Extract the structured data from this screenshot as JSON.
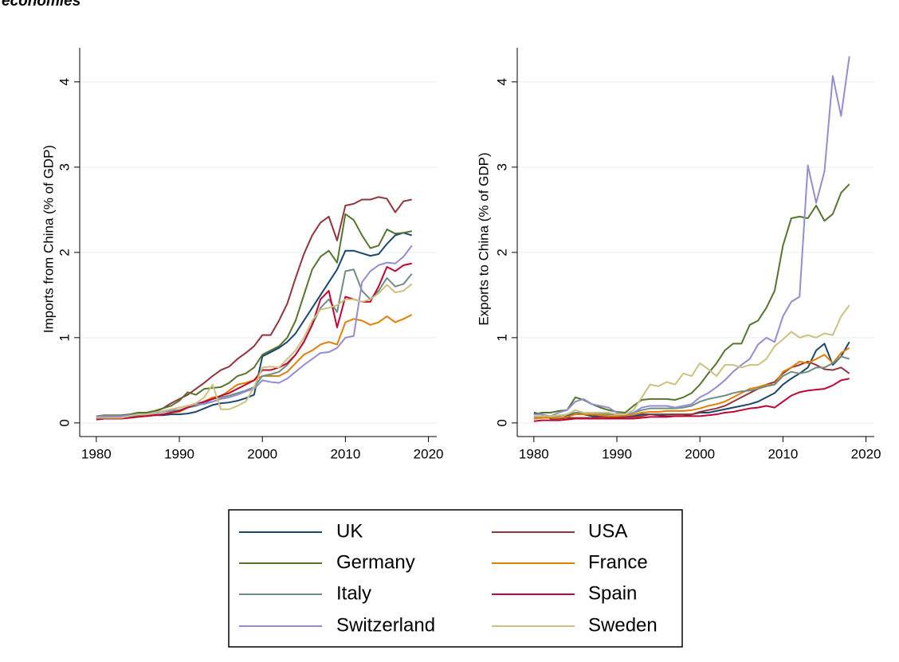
{
  "header": {
    "title": "economies"
  },
  "chart_data": [
    {
      "type": "line",
      "ylabel": "Imports from China (% of GDP)",
      "x": [
        1980,
        1981,
        1982,
        1983,
        1984,
        1985,
        1986,
        1987,
        1988,
        1989,
        1990,
        1991,
        1992,
        1993,
        1994,
        1995,
        1996,
        1997,
        1998,
        1999,
        2000,
        2001,
        2002,
        2003,
        2004,
        2005,
        2006,
        2007,
        2008,
        2009,
        2010,
        2011,
        2012,
        2013,
        2014,
        2015,
        2016,
        2017,
        2018
      ],
      "xlim": [
        1978,
        2021
      ],
      "xticks": [
        1980,
        1990,
        2000,
        2010,
        2020
      ],
      "ylim": [
        -0.16,
        4.4
      ],
      "yticks": [
        0,
        1,
        2,
        3,
        4
      ],
      "grid": true,
      "series": [
        {
          "name": "UK",
          "color": "#1a476f",
          "values": [
            0.07,
            0.07,
            0.07,
            0.07,
            0.08,
            0.08,
            0.08,
            0.09,
            0.09,
            0.1,
            0.1,
            0.11,
            0.13,
            0.17,
            0.21,
            0.23,
            0.24,
            0.26,
            0.29,
            0.33,
            0.78,
            0.83,
            0.88,
            0.95,
            1.05,
            1.2,
            1.35,
            1.5,
            1.65,
            1.8,
            2.02,
            2.02,
            1.99,
            1.96,
            1.98,
            2.1,
            2.2,
            2.23,
            2.2
          ]
        },
        {
          "name": "USA",
          "color": "#90353b",
          "values": [
            0.05,
            0.05,
            0.05,
            0.05,
            0.07,
            0.09,
            0.1,
            0.13,
            0.17,
            0.23,
            0.28,
            0.33,
            0.4,
            0.47,
            0.55,
            0.62,
            0.66,
            0.75,
            0.82,
            0.9,
            1.03,
            1.03,
            1.2,
            1.4,
            1.7,
            1.98,
            2.2,
            2.35,
            2.42,
            2.14,
            2.55,
            2.57,
            2.62,
            2.62,
            2.65,
            2.63,
            2.47,
            2.6,
            2.62
          ]
        },
        {
          "name": "Germany",
          "color": "#55752f",
          "values": [
            0.08,
            0.09,
            0.09,
            0.09,
            0.1,
            0.12,
            0.12,
            0.14,
            0.17,
            0.2,
            0.26,
            0.36,
            0.33,
            0.4,
            0.41,
            0.42,
            0.47,
            0.55,
            0.58,
            0.65,
            0.8,
            0.85,
            0.9,
            1.0,
            1.2,
            1.5,
            1.8,
            1.95,
            2.02,
            1.88,
            2.45,
            2.38,
            2.2,
            2.05,
            2.08,
            2.27,
            2.22,
            2.23,
            2.25
          ]
        },
        {
          "name": "France",
          "color": "#e37e00",
          "values": [
            0.06,
            0.06,
            0.06,
            0.06,
            0.07,
            0.08,
            0.08,
            0.09,
            0.1,
            0.12,
            0.13,
            0.18,
            0.2,
            0.25,
            0.3,
            0.31,
            0.38,
            0.45,
            0.47,
            0.5,
            0.55,
            0.55,
            0.55,
            0.6,
            0.7,
            0.8,
            0.85,
            0.92,
            0.95,
            0.92,
            1.18,
            1.22,
            1.2,
            1.15,
            1.18,
            1.25,
            1.18,
            1.22,
            1.27
          ]
        },
        {
          "name": "Italy",
          "color": "#6e8e84",
          "values": [
            0.06,
            0.06,
            0.06,
            0.06,
            0.07,
            0.09,
            0.1,
            0.12,
            0.13,
            0.14,
            0.15,
            0.18,
            0.2,
            0.23,
            0.28,
            0.3,
            0.32,
            0.35,
            0.38,
            0.42,
            0.55,
            0.57,
            0.6,
            0.68,
            0.8,
            0.95,
            1.15,
            1.35,
            1.45,
            1.3,
            1.78,
            1.8,
            1.55,
            1.45,
            1.55,
            1.7,
            1.6,
            1.63,
            1.75
          ]
        },
        {
          "name": "Spain",
          "color": "#c10534",
          "values": [
            0.04,
            0.05,
            0.05,
            0.05,
            0.06,
            0.07,
            0.08,
            0.09,
            0.1,
            0.12,
            0.14,
            0.18,
            0.22,
            0.25,
            0.28,
            0.32,
            0.35,
            0.4,
            0.45,
            0.5,
            0.62,
            0.62,
            0.65,
            0.7,
            0.8,
            0.95,
            1.15,
            1.45,
            1.55,
            1.12,
            1.48,
            1.45,
            1.42,
            1.42,
            1.6,
            1.83,
            1.78,
            1.85,
            1.87
          ]
        },
        {
          "name": "Switzerland",
          "color": "#938dd2",
          "values": [
            0.08,
            0.08,
            0.08,
            0.08,
            0.09,
            0.1,
            0.1,
            0.11,
            0.13,
            0.15,
            0.18,
            0.2,
            0.22,
            0.22,
            0.25,
            0.28,
            0.3,
            0.33,
            0.37,
            0.4,
            0.5,
            0.48,
            0.47,
            0.52,
            0.6,
            0.68,
            0.75,
            0.82,
            0.83,
            0.88,
            1.0,
            1.02,
            1.65,
            1.78,
            1.85,
            1.88,
            1.87,
            1.95,
            2.08
          ]
        },
        {
          "name": "Sweden",
          "color": "#cac27e",
          "values": [
            0.06,
            0.06,
            0.06,
            0.06,
            0.08,
            0.1,
            0.1,
            0.12,
            0.14,
            0.16,
            0.18,
            0.2,
            0.23,
            0.3,
            0.45,
            0.16,
            0.16,
            0.2,
            0.25,
            0.42,
            0.65,
            0.66,
            0.65,
            0.75,
            0.85,
            1.0,
            1.2,
            1.33,
            1.35,
            1.38,
            1.45,
            1.45,
            1.42,
            1.45,
            1.52,
            1.62,
            1.53,
            1.55,
            1.63
          ]
        }
      ]
    },
    {
      "type": "line",
      "ylabel": "Exports to China (% of GDP)",
      "x": [
        1980,
        1981,
        1982,
        1983,
        1984,
        1985,
        1986,
        1987,
        1988,
        1989,
        1990,
        1991,
        1992,
        1993,
        1994,
        1995,
        1996,
        1997,
        1998,
        1999,
        2000,
        2001,
        2002,
        2003,
        2004,
        2005,
        2006,
        2007,
        2008,
        2009,
        2010,
        2011,
        2012,
        2013,
        2014,
        2015,
        2016,
        2017,
        2018
      ],
      "xlim": [
        1978,
        2021
      ],
      "xticks": [
        1980,
        1990,
        2000,
        2010,
        2020
      ],
      "ylim": [
        -0.16,
        4.4
      ],
      "yticks": [
        0,
        1,
        2,
        3,
        4
      ],
      "grid": true,
      "series": [
        {
          "color": "#1a476f",
          "values": [
            0.12,
            0.1,
            0.05,
            0.05,
            0.08,
            0.12,
            0.1,
            0.08,
            0.08,
            0.07,
            0.07,
            0.07,
            0.08,
            0.1,
            0.1,
            0.09,
            0.08,
            0.08,
            0.08,
            0.1,
            0.12,
            0.12,
            0.14,
            0.16,
            0.18,
            0.2,
            0.22,
            0.25,
            0.3,
            0.35,
            0.45,
            0.52,
            0.58,
            0.65,
            0.85,
            0.93,
            0.68,
            0.78,
            0.95
          ]
        },
        {
          "color": "#90353b",
          "values": [
            0.05,
            0.06,
            0.06,
            0.05,
            0.06,
            0.06,
            0.06,
            0.06,
            0.07,
            0.07,
            0.06,
            0.07,
            0.07,
            0.08,
            0.1,
            0.1,
            0.1,
            0.1,
            0.1,
            0.1,
            0.13,
            0.15,
            0.17,
            0.2,
            0.25,
            0.3,
            0.35,
            0.4,
            0.45,
            0.48,
            0.58,
            0.65,
            0.68,
            0.72,
            0.68,
            0.63,
            0.62,
            0.65,
            0.58
          ]
        },
        {
          "color": "#55752f",
          "values": [
            0.1,
            0.12,
            0.12,
            0.14,
            0.15,
            0.3,
            0.27,
            0.22,
            0.18,
            0.15,
            0.13,
            0.12,
            0.2,
            0.27,
            0.28,
            0.28,
            0.28,
            0.27,
            0.3,
            0.35,
            0.45,
            0.58,
            0.7,
            0.85,
            0.93,
            0.93,
            1.15,
            1.2,
            1.35,
            1.55,
            2.08,
            2.4,
            2.42,
            2.4,
            2.55,
            2.37,
            2.45,
            2.7,
            2.8
          ]
        },
        {
          "color": "#e37e00",
          "values": [
            0.05,
            0.06,
            0.06,
            0.06,
            0.07,
            0.1,
            0.1,
            0.1,
            0.09,
            0.08,
            0.08,
            0.09,
            0.1,
            0.12,
            0.13,
            0.13,
            0.14,
            0.14,
            0.14,
            0.15,
            0.17,
            0.2,
            0.22,
            0.25,
            0.3,
            0.35,
            0.4,
            0.42,
            0.45,
            0.45,
            0.6,
            0.65,
            0.72,
            0.7,
            0.75,
            0.8,
            0.7,
            0.82,
            0.88
          ]
        },
        {
          "color": "#6e8e84",
          "values": [
            0.07,
            0.08,
            0.08,
            0.08,
            0.1,
            0.12,
            0.12,
            0.12,
            0.11,
            0.1,
            0.1,
            0.1,
            0.12,
            0.15,
            0.17,
            0.17,
            0.17,
            0.17,
            0.18,
            0.2,
            0.25,
            0.28,
            0.3,
            0.32,
            0.35,
            0.37,
            0.38,
            0.4,
            0.43,
            0.45,
            0.55,
            0.6,
            0.58,
            0.6,
            0.65,
            0.65,
            0.7,
            0.78,
            0.75
          ]
        },
        {
          "color": "#c10534",
          "values": [
            0.02,
            0.03,
            0.03,
            0.03,
            0.04,
            0.05,
            0.05,
            0.05,
            0.05,
            0.05,
            0.05,
            0.05,
            0.05,
            0.06,
            0.07,
            0.07,
            0.07,
            0.08,
            0.08,
            0.08,
            0.08,
            0.09,
            0.1,
            0.12,
            0.13,
            0.15,
            0.17,
            0.18,
            0.2,
            0.18,
            0.25,
            0.32,
            0.36,
            0.38,
            0.39,
            0.4,
            0.44,
            0.5,
            0.52
          ]
        },
        {
          "color": "#938dd2",
          "values": [
            0.1,
            0.1,
            0.08,
            0.12,
            0.15,
            0.25,
            0.28,
            0.22,
            0.2,
            0.18,
            0.12,
            0.1,
            0.12,
            0.18,
            0.2,
            0.2,
            0.2,
            0.18,
            0.2,
            0.22,
            0.3,
            0.35,
            0.42,
            0.5,
            0.6,
            0.68,
            0.75,
            0.92,
            1.0,
            0.95,
            1.25,
            1.42,
            1.48,
            3.02,
            2.58,
            2.95,
            4.07,
            3.6,
            4.3
          ]
        },
        {
          "color": "#cac27e",
          "values": [
            0.08,
            0.08,
            0.08,
            0.09,
            0.1,
            0.15,
            0.12,
            0.12,
            0.12,
            0.12,
            0.1,
            0.1,
            0.15,
            0.3,
            0.45,
            0.43,
            0.48,
            0.45,
            0.58,
            0.55,
            0.7,
            0.63,
            0.55,
            0.68,
            0.68,
            0.65,
            0.68,
            0.68,
            0.75,
            0.9,
            0.98,
            1.07,
            1.0,
            1.03,
            1.0,
            1.05,
            1.03,
            1.25,
            1.38
          ]
        }
      ]
    }
  ]
}
